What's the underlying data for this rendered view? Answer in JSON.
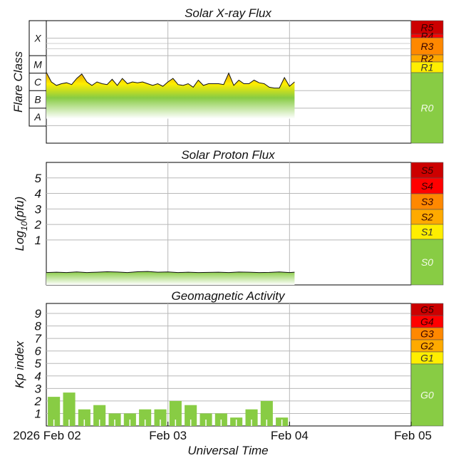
{
  "chart_data": [
    {
      "type": "area",
      "title": "Solar X-ray Flux",
      "ylabel": "Flare Class",
      "class_labels": [
        "X",
        "M",
        "C",
        "B",
        "A"
      ],
      "xlim": [
        0,
        72
      ],
      "ylim_exp": [
        -9,
        -2
      ],
      "x": [
        0,
        1,
        2,
        3,
        4,
        5,
        6,
        7,
        8,
        9,
        10,
        11,
        12,
        13,
        14,
        15,
        16,
        17,
        18,
        19,
        20,
        21,
        22,
        23,
        24,
        25,
        26,
        27,
        28,
        29,
        30,
        31,
        32,
        33,
        34,
        35,
        36,
        37,
        38,
        39,
        40,
        41,
        42,
        43,
        44,
        45,
        46,
        47,
        48,
        49
      ],
      "flux_exp": [
        -4.95,
        -5.5,
        -5.7,
        -5.6,
        -5.55,
        -5.65,
        -5.3,
        -5.05,
        -5.5,
        -5.7,
        -5.5,
        -5.6,
        -5.65,
        -5.35,
        -5.7,
        -5.3,
        -5.6,
        -5.5,
        -5.55,
        -5.5,
        -5.6,
        -5.7,
        -5.6,
        -5.75,
        -5.5,
        -5.3,
        -5.65,
        -5.7,
        -5.6,
        -5.8,
        -5.4,
        -5.7,
        -5.6,
        -5.6,
        -5.6,
        -5.65,
        -5.0,
        -5.7,
        -5.4,
        -5.6,
        -5.6,
        -5.4,
        -5.55,
        -5.6,
        -5.8,
        -5.85,
        -5.85,
        -5.25,
        -5.75,
        -5.5
      ],
      "scale": [
        {
          "label": "R5",
          "color": "#cc0000"
        },
        {
          "label": "R4",
          "color": "#ff0000"
        },
        {
          "label": "R3",
          "color": "#ff8800"
        },
        {
          "label": "R2",
          "color": "#ffaa00"
        },
        {
          "label": "R1",
          "color": "#ffee00"
        },
        {
          "label": "R0",
          "color": "#88cc44"
        }
      ]
    },
    {
      "type": "area",
      "title": "Solar Proton Flux",
      "ylabel": "Log10(pfu)",
      "ylabel_main": "Log",
      "ylabel_sub": "10",
      "ylabel_tail": "(pfu)",
      "yticks": [
        1,
        2,
        3,
        4,
        5
      ],
      "ylim": [
        -1.9,
        6
      ],
      "xlim": [
        0,
        72
      ],
      "x": [
        0,
        2,
        4,
        6,
        8,
        10,
        12,
        14,
        16,
        18,
        20,
        22,
        24,
        26,
        28,
        30,
        32,
        34,
        36,
        38,
        40,
        42,
        44,
        46,
        48,
        49
      ],
      "values": [
        -1.1,
        -1.08,
        -1.1,
        -1.06,
        -1.1,
        -1.08,
        -1.05,
        -1.07,
        -1.1,
        -1.05,
        -1.03,
        -1.08,
        -1.06,
        -1.1,
        -1.08,
        -1.1,
        -1.09,
        -1.08,
        -1.1,
        -1.07,
        -1.08,
        -1.1,
        -1.09,
        -1.06,
        -1.1,
        -1.08
      ],
      "scale": [
        {
          "label": "S5",
          "color": "#cc0000"
        },
        {
          "label": "S4",
          "color": "#ff0000"
        },
        {
          "label": "S3",
          "color": "#ff8800"
        },
        {
          "label": "S2",
          "color": "#ffaa00"
        },
        {
          "label": "S1",
          "color": "#ffee00"
        },
        {
          "label": "S0",
          "color": "#88cc44"
        }
      ]
    },
    {
      "type": "bar",
      "title": "Geomagnetic Activity",
      "ylabel": "Kp index",
      "yticks": [
        1,
        2,
        3,
        4,
        5,
        6,
        7,
        8,
        9
      ],
      "ylim": [
        0,
        9.8
      ],
      "xlim": [
        0,
        72
      ],
      "bar_width_hours": 2.4,
      "x": [
        1.5,
        4.5,
        7.5,
        10.5,
        13.5,
        16.5,
        19.5,
        22.5,
        25.5,
        28.5,
        31.5,
        34.5,
        37.5,
        40.5,
        43.5,
        46.5
      ],
      "values": [
        2.33,
        2.67,
        1.33,
        1.67,
        1.0,
        1.0,
        1.33,
        1.33,
        2.0,
        1.67,
        1.0,
        1.0,
        0.67,
        1.33,
        2.0,
        0.67
      ],
      "bar_color": "#88cc44",
      "scale": [
        {
          "label": "G5",
          "color": "#cc0000"
        },
        {
          "label": "G4",
          "color": "#ff0000"
        },
        {
          "label": "G3",
          "color": "#ff8800"
        },
        {
          "label": "G2",
          "color": "#ffaa00"
        },
        {
          "label": "G1",
          "color": "#ffee00"
        },
        {
          "label": "G0",
          "color": "#88cc44"
        }
      ]
    }
  ],
  "x_axis": {
    "label": "Universal Time",
    "ticks": [
      {
        "hour": 0,
        "label": "2026 Feb 02"
      },
      {
        "hour": 24,
        "label": "Feb 03"
      },
      {
        "hour": 48,
        "label": "Feb 04"
      },
      {
        "hour": 72,
        "label": "Feb 05"
      }
    ]
  }
}
